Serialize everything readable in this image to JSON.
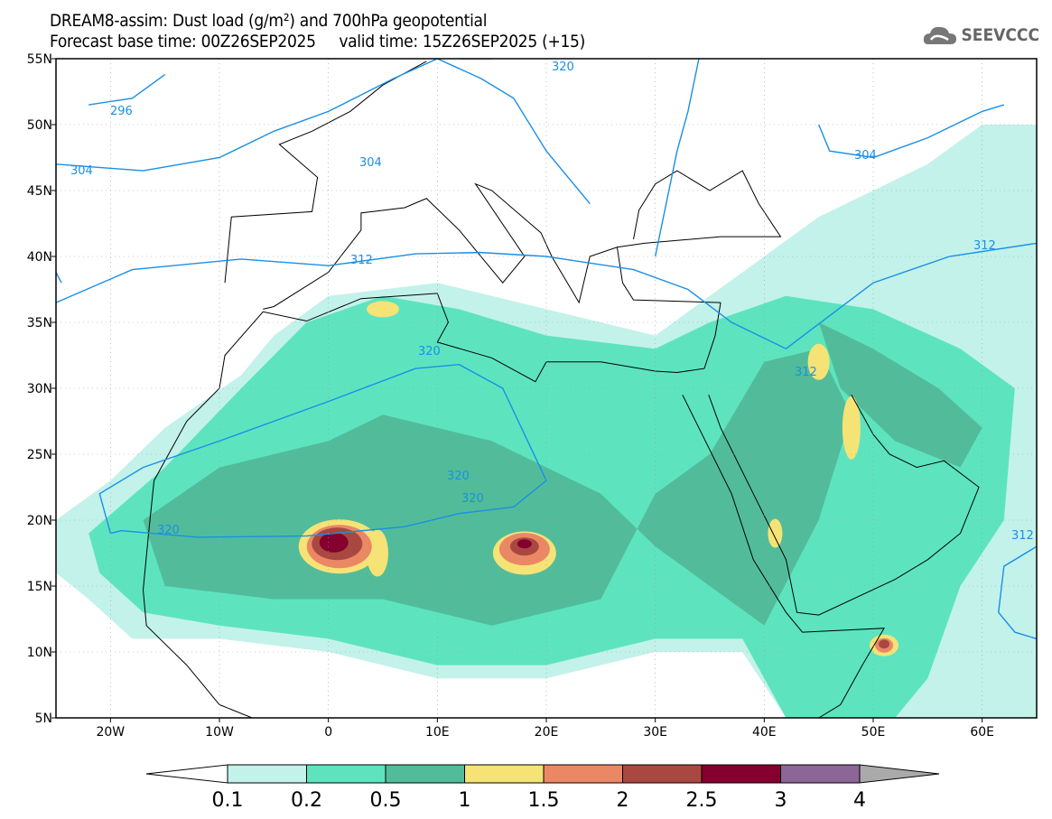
{
  "title": {
    "line1": "DREAM8-assim: Dust load (g/m²) and 700hPa geopotential",
    "line2": "Forecast base time: 00Z26SEP2025     valid time: 15Z26SEP2025 (+15)"
  },
  "logo": {
    "text": "SEEVCCC",
    "icon": "cloud-icon"
  },
  "axes": {
    "lat_labels": [
      "55N",
      "50N",
      "45N",
      "40N",
      "35N",
      "30N",
      "25N",
      "20N",
      "15N",
      "10N",
      "5N"
    ],
    "lon_labels": [
      "20W",
      "10W",
      "0",
      "10E",
      "20E",
      "30E",
      "40E",
      "50E",
      "60E"
    ]
  },
  "contour_labels": {
    "c296": "296",
    "c304a": "304",
    "c304b": "304",
    "c304c": "304",
    "c312a": "312",
    "c312b": "312",
    "c312c": "312",
    "c312d": "312",
    "c320a": "320",
    "c320b": "320",
    "c320c": "320",
    "c320d": "320",
    "c320e": "320"
  },
  "colorbar": {
    "labels": [
      "0.1",
      "0.2",
      "0.5",
      "1",
      "1.5",
      "2",
      "2.5",
      "3",
      "4"
    ],
    "colors": [
      "#c3f2ea",
      "#5de4bf",
      "#52bc9a",
      "#f5e376",
      "#ea8866",
      "#a94840",
      "#85002e",
      "#8b6697",
      "#aaaaaa"
    ]
  },
  "contour_color": "#1a8fe6"
}
